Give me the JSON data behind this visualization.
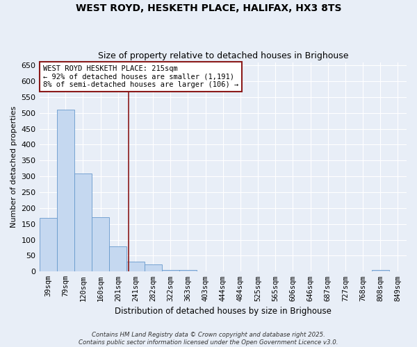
{
  "title": "WEST ROYD, HESKETH PLACE, HALIFAX, HX3 8TS",
  "subtitle": "Size of property relative to detached houses in Brighouse",
  "xlabel": "Distribution of detached houses by size in Brighouse",
  "ylabel": "Number of detached properties",
  "bar_labels": [
    "39sqm",
    "79sqm",
    "120sqm",
    "160sqm",
    "201sqm",
    "241sqm",
    "282sqm",
    "322sqm",
    "363sqm",
    "403sqm",
    "444sqm",
    "484sqm",
    "525sqm",
    "565sqm",
    "606sqm",
    "646sqm",
    "687sqm",
    "727sqm",
    "768sqm",
    "808sqm",
    "849sqm"
  ],
  "bar_values": [
    170,
    510,
    310,
    172,
    80,
    32,
    22,
    5,
    6,
    0,
    0,
    0,
    0,
    0,
    0,
    0,
    0,
    0,
    0,
    5,
    0
  ],
  "bar_color": "#c5d8f0",
  "bar_edge_color": "#6699cc",
  "bg_color": "#e8eef7",
  "grid_color": "#ffffff",
  "vline_x": 4.62,
  "vline_color": "#8b1a1a",
  "annotation_text": "WEST ROYD HESKETH PLACE: 215sqm\n← 92% of detached houses are smaller (1,191)\n8% of semi-detached houses are larger (106) →",
  "annotation_box_color": "#ffffff",
  "annotation_border_color": "#8b1a1a",
  "footer_line1": "Contains HM Land Registry data © Crown copyright and database right 2025.",
  "footer_line2": "Contains public sector information licensed under the Open Government Licence v3.0.",
  "ylim": [
    0,
    660
  ],
  "yticks": [
    0,
    50,
    100,
    150,
    200,
    250,
    300,
    350,
    400,
    450,
    500,
    550,
    600,
    650
  ]
}
